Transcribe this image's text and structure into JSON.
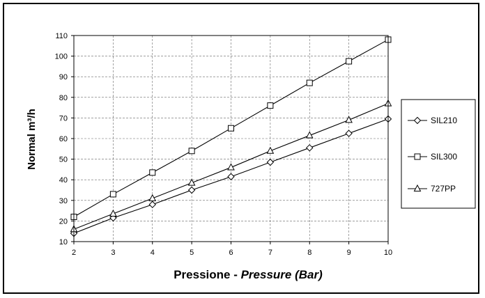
{
  "chart_data": {
    "type": "line",
    "xlabel_normal": "Pressione - ",
    "xlabel_italic": "Pressure (Bar)",
    "ylabel": "Normal m³/h",
    "x": [
      2,
      3,
      4,
      5,
      6,
      7,
      8,
      9,
      10
    ],
    "xlim": [
      2,
      10
    ],
    "ylim": [
      10,
      110
    ],
    "yticks": [
      10,
      20,
      30,
      40,
      50,
      60,
      70,
      80,
      90,
      100,
      110
    ],
    "grid": true,
    "legend_position": "right",
    "series": [
      {
        "name": "SIL210",
        "marker": "diamond",
        "values": [
          14,
          21.5,
          28,
          35,
          41.5,
          48.5,
          55.5,
          62.5,
          69.5
        ]
      },
      {
        "name": "SIL300",
        "marker": "square",
        "values": [
          22,
          33,
          43.5,
          54,
          65,
          76,
          87,
          97.5,
          108
        ]
      },
      {
        "name": "727PP",
        "marker": "triangle",
        "values": [
          16,
          23.5,
          31,
          38.5,
          46,
          54,
          61.5,
          69,
          77
        ]
      }
    ]
  }
}
